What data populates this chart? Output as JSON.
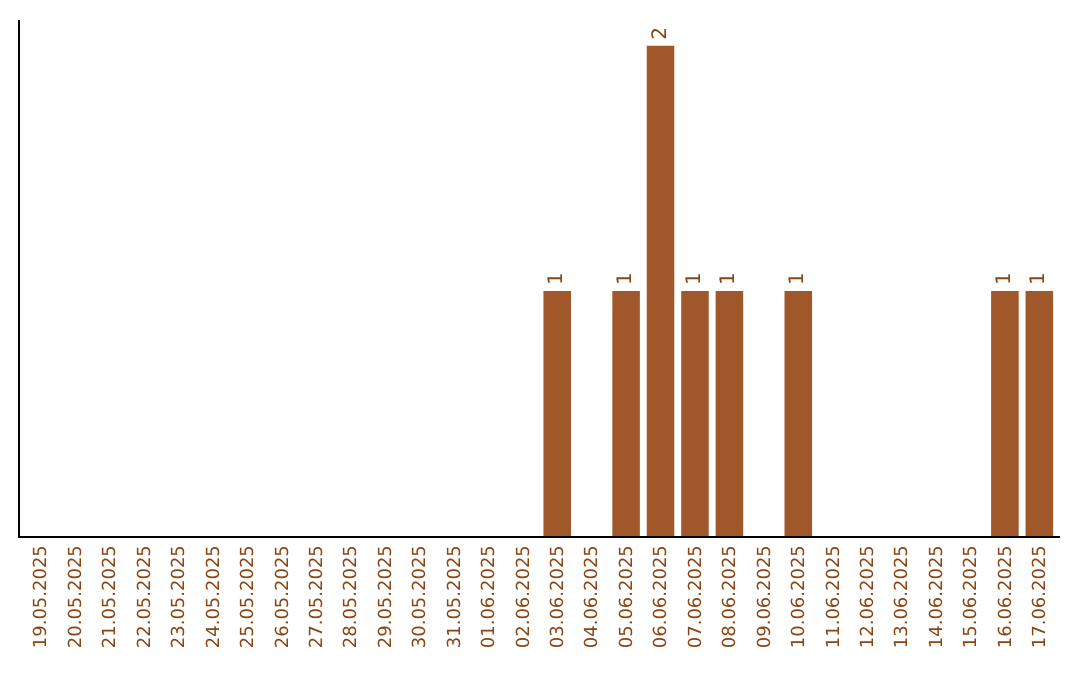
{
  "chart_data": {
    "type": "bar",
    "categories": [
      "19.05.2025",
      "20.05.2025",
      "21.05.2025",
      "22.05.2025",
      "23.05.2025",
      "24.05.2025",
      "25.05.2025",
      "26.05.2025",
      "27.05.2025",
      "28.05.2025",
      "29.05.2025",
      "30.05.2025",
      "31.05.2025",
      "01.06.2025",
      "02.06.2025",
      "03.06.2025",
      "04.06.2025",
      "05.06.2025",
      "06.06.2025",
      "07.06.2025",
      "08.06.2025",
      "09.06.2025",
      "10.06.2025",
      "11.06.2025",
      "12.06.2025",
      "13.06.2025",
      "14.06.2025",
      "15.06.2025",
      "16.06.2025",
      "17.06.2025"
    ],
    "values": [
      null,
      null,
      null,
      null,
      null,
      null,
      null,
      null,
      null,
      null,
      null,
      null,
      null,
      null,
      null,
      1,
      null,
      1,
      2,
      1,
      1,
      null,
      1,
      null,
      null,
      null,
      null,
      null,
      1,
      1
    ],
    "data_labels": true,
    "color": "#a0582a",
    "tick_labels": "x"
  }
}
